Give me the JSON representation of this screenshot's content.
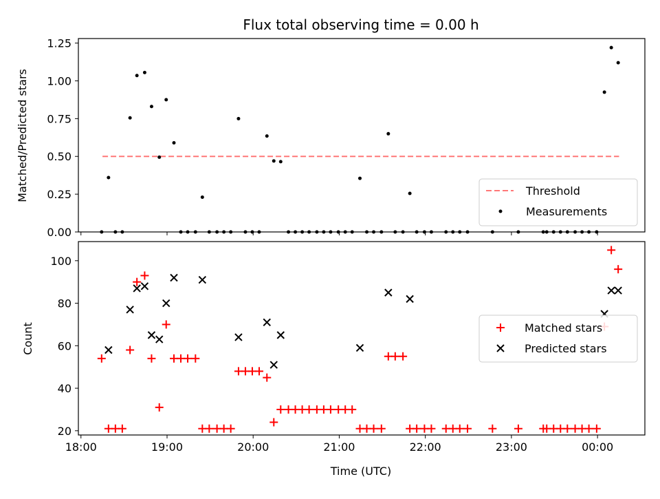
{
  "chart_data": [
    {
      "type": "scatter",
      "title": "Flux total observing time = 0.00 h",
      "xlabel": "",
      "ylabel": "Matched/Predicted stars",
      "x_unit": "hours (UTC, values beyond 24 wrap past midnight)",
      "xlim": [
        17.97,
        24.55
      ],
      "ylim": [
        0.0,
        1.28
      ],
      "x_ticks": [
        18,
        19,
        20,
        21,
        22,
        23,
        24
      ],
      "x_tick_labels": [
        "18:00",
        "19:00",
        "20:00",
        "21:00",
        "22:00",
        "23:00",
        "00:00"
      ],
      "y_ticks": [
        0.0,
        0.25,
        0.5,
        0.75,
        1.0,
        1.25
      ],
      "y_tick_labels": [
        "0.00",
        "0.25",
        "0.50",
        "0.75",
        "1.00",
        "1.25"
      ],
      "legend_position": "lower right",
      "series": [
        {
          "name": "Threshold",
          "style": "dashed-line",
          "color": "#ff7777",
          "x": [
            18.25,
            24.25
          ],
          "y": [
            0.5,
            0.5
          ]
        },
        {
          "name": "Measurements",
          "style": "dots",
          "color": "#000000",
          "x": [
            18.24,
            18.32,
            18.4,
            18.48,
            18.57,
            18.65,
            18.74,
            18.82,
            18.91,
            18.99,
            19.08,
            19.16,
            19.24,
            19.33,
            19.41,
            19.49,
            19.58,
            19.66,
            19.74,
            19.83,
            19.91,
            19.99,
            20.07,
            20.16,
            20.24,
            20.32,
            20.41,
            20.49,
            20.57,
            20.65,
            20.74,
            20.82,
            20.9,
            20.99,
            21.07,
            21.15,
            21.24,
            21.32,
            21.4,
            21.49,
            21.57,
            21.65,
            21.74,
            21.82,
            21.9,
            21.99,
            22.07,
            22.24,
            22.32,
            22.4,
            22.49,
            22.78,
            23.08,
            23.37,
            23.41,
            23.49,
            23.57,
            23.65,
            23.74,
            23.82,
            23.9,
            23.99,
            24.08,
            24.16,
            24.24
          ],
          "y": [
            0.0,
            0.36,
            0.0,
            0.0,
            0.755,
            1.035,
            1.055,
            0.83,
            0.495,
            0.875,
            0.59,
            0.0,
            0.0,
            0.0,
            0.23,
            0.0,
            0.0,
            0.0,
            0.0,
            0.75,
            0.0,
            0.0,
            0.0,
            0.635,
            0.47,
            0.465,
            0.0,
            0.0,
            0.0,
            0.0,
            0.0,
            0.0,
            0.0,
            0.0,
            0.0,
            0.0,
            0.355,
            0.0,
            0.0,
            0.0,
            0.65,
            0.0,
            0.0,
            0.255,
            0.0,
            0.0,
            0.0,
            0.0,
            0.0,
            0.0,
            0.0,
            0.0,
            0.0,
            0.0,
            0.0,
            0.0,
            0.0,
            0.0,
            0.0,
            0.0,
            0.0,
            0.0,
            0.925,
            1.22,
            1.12
          ]
        }
      ]
    },
    {
      "type": "scatter",
      "title": "",
      "xlabel": "Time (UTC)",
      "ylabel": "Count",
      "xlim": [
        17.97,
        24.55
      ],
      "ylim": [
        18.0,
        109.0
      ],
      "x_ticks": [
        18,
        19,
        20,
        21,
        22,
        23,
        24
      ],
      "x_tick_labels": [
        "18:00",
        "19:00",
        "20:00",
        "21:00",
        "22:00",
        "23:00",
        "00:00"
      ],
      "y_ticks": [
        20,
        40,
        60,
        80,
        100
      ],
      "y_tick_labels": [
        "20",
        "40",
        "60",
        "80",
        "100"
      ],
      "legend_position": "center right",
      "series": [
        {
          "name": "Matched stars",
          "marker": "plus",
          "color": "#ff0000",
          "x": [
            18.24,
            18.32,
            18.4,
            18.48,
            18.57,
            18.65,
            18.74,
            18.82,
            18.91,
            18.99,
            19.08,
            19.16,
            19.24,
            19.33,
            19.41,
            19.49,
            19.58,
            19.66,
            19.74,
            19.83,
            19.91,
            19.99,
            20.07,
            20.16,
            20.24,
            20.32,
            20.41,
            20.49,
            20.57,
            20.65,
            20.74,
            20.82,
            20.9,
            20.99,
            21.07,
            21.15,
            21.24,
            21.32,
            21.4,
            21.49,
            21.57,
            21.65,
            21.74,
            21.82,
            21.9,
            21.99,
            22.07,
            22.24,
            22.32,
            22.4,
            22.49,
            22.78,
            23.08,
            23.37,
            23.41,
            23.49,
            23.57,
            23.65,
            23.74,
            23.82,
            23.9,
            23.99,
            24.08,
            24.16,
            24.24
          ],
          "y": [
            54,
            21,
            21,
            21,
            58,
            90,
            93,
            54,
            31,
            70,
            54,
            54,
            54,
            54,
            21,
            21,
            21,
            21,
            21,
            48,
            48,
            48,
            48,
            45,
            24,
            30,
            30,
            30,
            30,
            30,
            30,
            30,
            30,
            30,
            30,
            30,
            21,
            21,
            21,
            21,
            55,
            55,
            55,
            21,
            21,
            21,
            21,
            21,
            21,
            21,
            21,
            21,
            21,
            21,
            21,
            21,
            21,
            21,
            21,
            21,
            21,
            21,
            69,
            105,
            96
          ]
        },
        {
          "name": "Predicted stars",
          "marker": "x",
          "color": "#000000",
          "x": [
            18.32,
            18.57,
            18.65,
            18.74,
            18.82,
            18.91,
            18.99,
            19.08,
            19.41,
            19.83,
            20.16,
            20.24,
            20.32,
            21.24,
            21.57,
            21.82,
            24.08,
            24.16,
            24.24
          ],
          "y": [
            58,
            77,
            87,
            88,
            65,
            63,
            80,
            92,
            91,
            64,
            71,
            51,
            65,
            59,
            85,
            82,
            75,
            86,
            86
          ]
        }
      ]
    }
  ]
}
